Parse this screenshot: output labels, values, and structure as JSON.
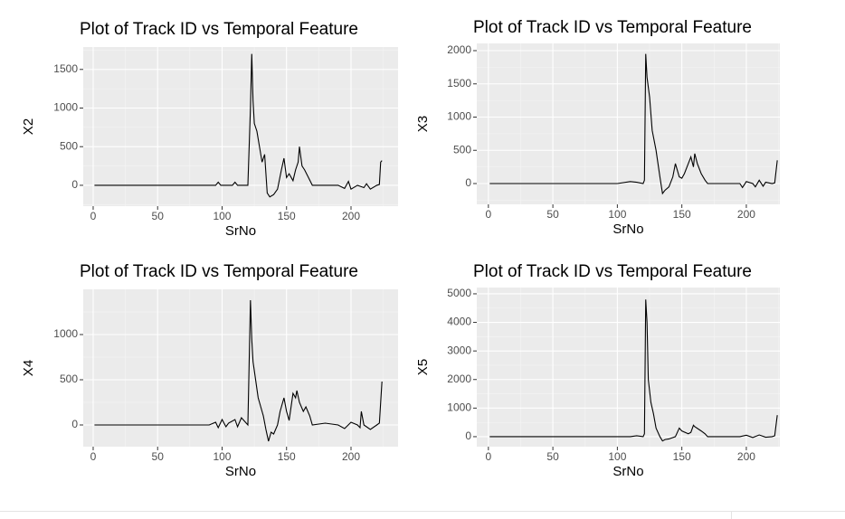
{
  "chart_data": [
    {
      "type": "line",
      "title": "Plot of Track ID vs Temporal Feature",
      "x_label": "SrNo",
      "y_label": "X2",
      "color": "#000000",
      "grid": true,
      "xlim": [
        -7.7,
        236.5
      ],
      "ylim": [
        -270,
        1790
      ],
      "xticks": [
        0,
        50,
        100,
        150,
        200
      ],
      "yticks": [
        0,
        500,
        1000,
        1500
      ],
      "x": [
        1,
        95,
        97,
        99,
        108,
        110,
        112,
        120,
        122,
        123,
        124,
        125,
        127,
        129,
        131,
        133,
        135,
        137,
        140,
        143,
        146,
        148,
        150,
        152,
        155,
        157,
        159,
        160,
        162,
        164,
        167,
        170,
        180,
        190,
        195,
        198,
        200,
        205,
        210,
        212,
        215,
        220,
        222,
        223,
        224
      ],
      "values": [
        0,
        0,
        40,
        0,
        0,
        40,
        0,
        0,
        1000,
        1700,
        1100,
        800,
        700,
        500,
        300,
        400,
        -100,
        -150,
        -120,
        -50,
        200,
        350,
        100,
        150,
        60,
        200,
        300,
        500,
        250,
        200,
        100,
        0,
        0,
        0,
        -40,
        50,
        -50,
        0,
        -30,
        20,
        -50,
        0,
        10,
        300,
        320
      ]
    },
    {
      "type": "line",
      "title": "Plot of Track ID vs Temporal Feature",
      "x_label": "SrNo",
      "y_label": "X3",
      "color": "#000000",
      "grid": true,
      "xlim": [
        -9,
        226
      ],
      "ylim": [
        -313,
        2109
      ],
      "xticks": [
        0,
        50,
        100,
        150,
        200
      ],
      "yticks": [
        0,
        500,
        1000,
        1500,
        2000
      ],
      "x": [
        1,
        100,
        110,
        115,
        120,
        121,
        122,
        123,
        125,
        127,
        130,
        133,
        135,
        137,
        140,
        143,
        145,
        148,
        150,
        152,
        155,
        157,
        159,
        160,
        162,
        165,
        168,
        170,
        180,
        195,
        197,
        200,
        205,
        207,
        210,
        213,
        215,
        220,
        222,
        224
      ],
      "values": [
        0,
        0,
        30,
        20,
        0,
        50,
        1950,
        1600,
        1300,
        800,
        500,
        100,
        -150,
        -100,
        -50,
        100,
        300,
        100,
        80,
        150,
        300,
        400,
        250,
        450,
        300,
        150,
        50,
        0,
        0,
        0,
        -60,
        30,
        0,
        -50,
        50,
        -40,
        20,
        0,
        10,
        350
      ]
    },
    {
      "type": "line",
      "title": "Plot of Track ID vs Temporal Feature",
      "x_label": "SrNo",
      "y_label": "X4",
      "color": "#000000",
      "grid": true,
      "xlim": [
        -7.7,
        236.5
      ],
      "ylim": [
        -240,
        1500
      ],
      "xticks": [
        0,
        50,
        100,
        150,
        200
      ],
      "yticks": [
        0,
        500,
        1000
      ],
      "x": [
        1,
        75,
        90,
        95,
        97,
        100,
        103,
        105,
        110,
        112,
        115,
        120,
        122,
        123,
        124,
        126,
        128,
        130,
        132,
        134,
        136,
        138,
        140,
        143,
        145,
        148,
        150,
        152,
        155,
        157,
        158,
        160,
        163,
        165,
        168,
        170,
        180,
        190,
        195,
        200,
        205,
        207,
        208,
        210,
        215,
        220,
        222,
        224
      ],
      "values": [
        0,
        0,
        0,
        30,
        -30,
        60,
        -20,
        20,
        60,
        -20,
        80,
        0,
        1380,
        950,
        700,
        500,
        300,
        200,
        100,
        -50,
        -180,
        -80,
        -100,
        0,
        150,
        300,
        150,
        50,
        350,
        300,
        380,
        250,
        150,
        200,
        100,
        0,
        20,
        0,
        -40,
        30,
        0,
        -30,
        150,
        0,
        -50,
        0,
        20,
        480
      ]
    },
    {
      "type": "line",
      "title": "Plot of Track ID vs Temporal Feature",
      "x_label": "SrNo",
      "y_label": "X5",
      "color": "#000000",
      "grid": true,
      "xlim": [
        -9,
        226
      ],
      "ylim": [
        -350,
        5220
      ],
      "xticks": [
        0,
        50,
        100,
        150,
        200
      ],
      "yticks": [
        0,
        1000,
        2000,
        3000,
        4000,
        5000
      ],
      "x": [
        1,
        110,
        115,
        120,
        121,
        122,
        123,
        124,
        126,
        128,
        130,
        133,
        135,
        137,
        140,
        145,
        148,
        150,
        155,
        157,
        159,
        160,
        165,
        168,
        170,
        180,
        195,
        200,
        205,
        210,
        215,
        220,
        222,
        224
      ],
      "values": [
        0,
        0,
        30,
        0,
        100,
        4800,
        4000,
        2000,
        1200,
        800,
        300,
        0,
        -150,
        -100,
        -80,
        0,
        300,
        200,
        100,
        150,
        400,
        350,
        200,
        100,
        0,
        0,
        0,
        50,
        -30,
        60,
        -20,
        0,
        30,
        750
      ]
    }
  ]
}
